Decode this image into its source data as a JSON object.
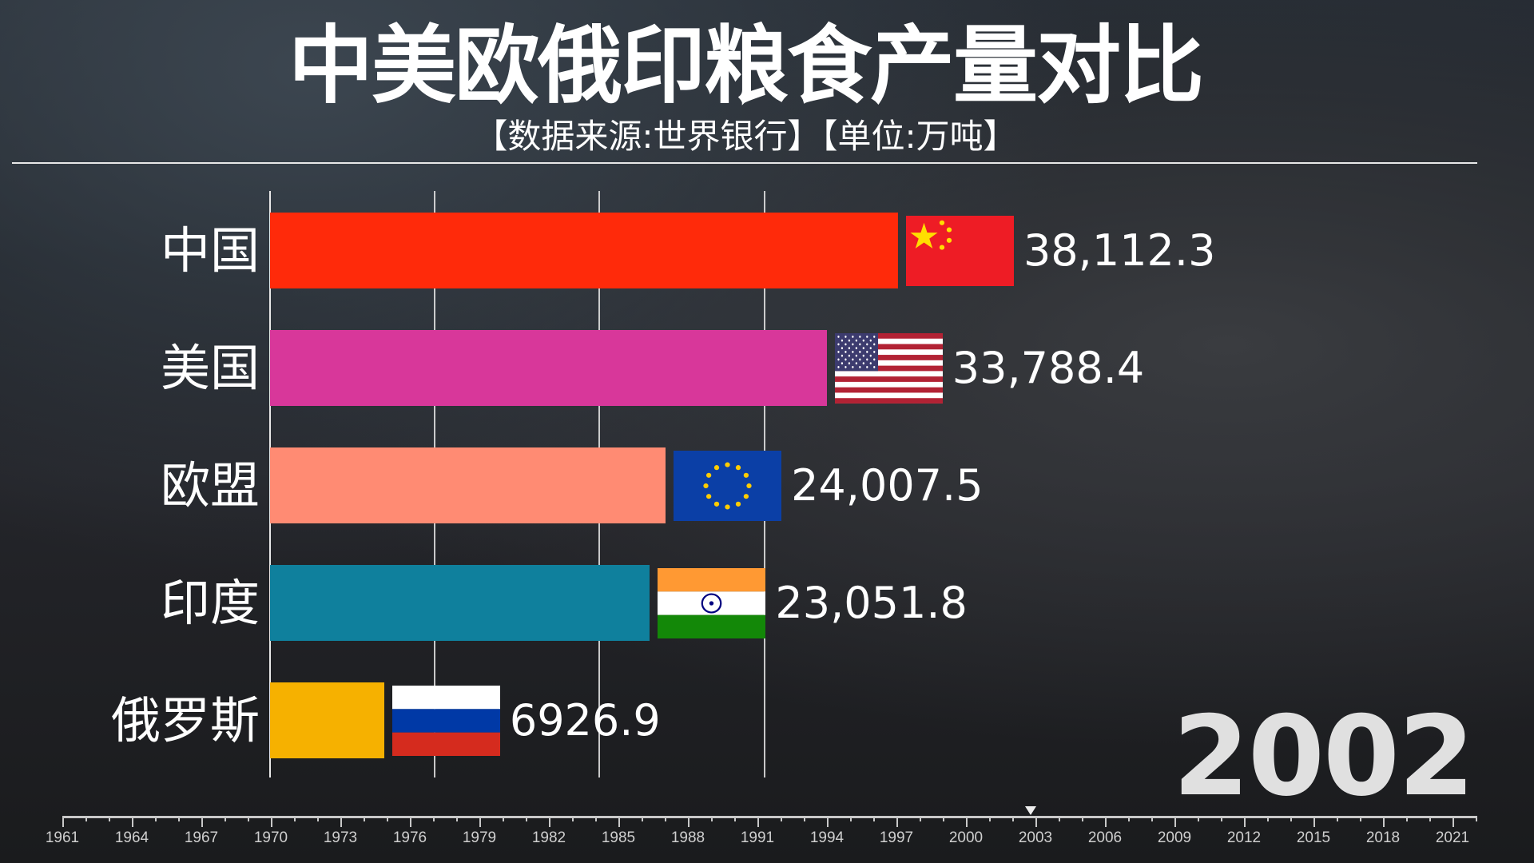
{
  "header": {
    "title": "中美欧俄印粮食产量对比",
    "subtitle": "【数据来源:世界银行】【单位:万吨】"
  },
  "chart_data": {
    "type": "bar",
    "orientation": "horizontal",
    "title": "中美欧俄印粮食产量对比",
    "subtitle": "【数据来源:世界银行】【单位:万吨】",
    "year": "2002",
    "categories": [
      "中国",
      "美国",
      "欧盟",
      "印度",
      "俄罗斯"
    ],
    "values": [
      38112.3,
      33788.4,
      24007.5,
      23051.8,
      6926.9
    ],
    "value_labels": [
      "38,112.3",
      "33,788.4",
      "24,007.5",
      "23,051.8",
      "6926.9"
    ],
    "colors": [
      "#ff2a0a",
      "#d8379a",
      "#ff8b73",
      "#0f809d",
      "#f6b100"
    ],
    "flags": [
      "china-flag",
      "usa-flag",
      "eu-flag",
      "india-flag",
      "russia-flag"
    ],
    "xlim": [
      0,
      45000
    ],
    "gridlines": [
      10000,
      20000,
      30000
    ],
    "grid": true,
    "legend": "none"
  },
  "timeline": {
    "start": 1961,
    "end": 2022,
    "labels": [
      "1961",
      "1964",
      "1967",
      "1970",
      "1973",
      "1976",
      "1979",
      "1982",
      "1985",
      "1988",
      "1991",
      "1994",
      "1997",
      "2000",
      "2003",
      "2006",
      "2009",
      "2012",
      "2015",
      "2018",
      "2021"
    ],
    "current": 2002.8
  }
}
